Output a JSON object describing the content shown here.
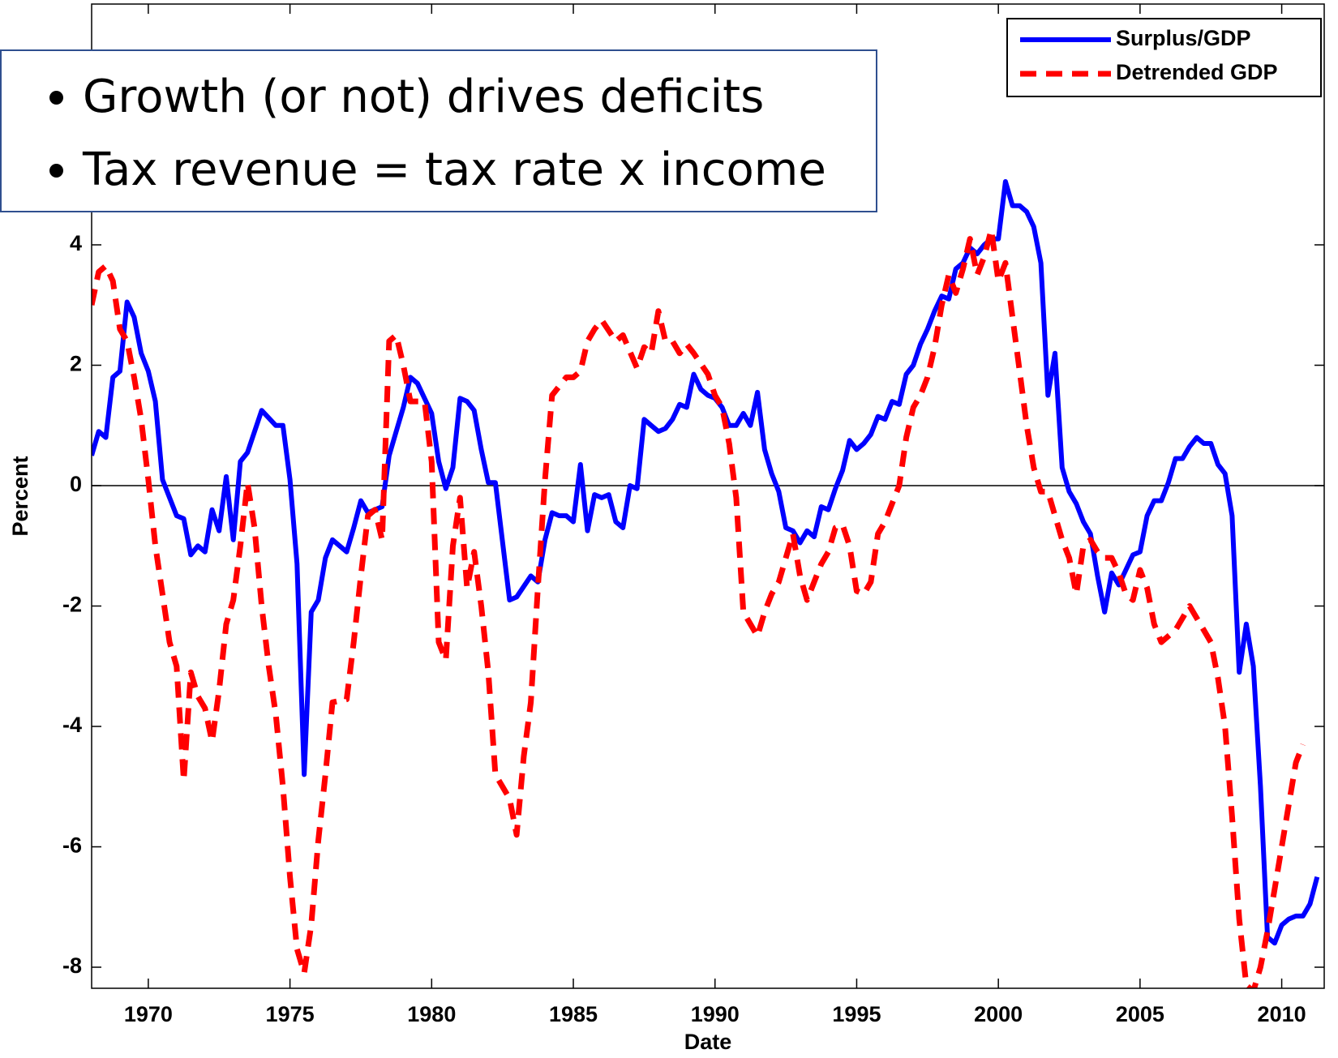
{
  "chart_data": {
    "type": "line",
    "xlabel": "Date",
    "ylabel": "Percent",
    "xlim": [
      1968,
      2011.5
    ],
    "ylim": [
      -8.35,
      8
    ],
    "xticks": [
      1970,
      1975,
      1980,
      1985,
      1990,
      1995,
      2000,
      2005,
      2010
    ],
    "yticks": [
      -8,
      -6,
      -4,
      -2,
      0,
      2,
      4
    ],
    "legend": "upper right",
    "annotations": [
      "Growth (or not) drives deficits",
      "Tax revenue = tax rate x income"
    ],
    "series": [
      {
        "name": "Surplus/GDP",
        "color": "#0000ff",
        "style": "solid",
        "x": [
          1968,
          1968.25,
          1968.5,
          1968.75,
          1969,
          1969.25,
          1969.5,
          1969.75,
          1970,
          1970.25,
          1970.5,
          1970.75,
          1971,
          1971.25,
          1971.5,
          1971.75,
          1972,
          1972.25,
          1972.5,
          1972.75,
          1973,
          1973.25,
          1973.5,
          1974,
          1974.5,
          1974.75,
          1975,
          1975.25,
          1975.5,
          1975.75,
          1976,
          1976.25,
          1976.5,
          1977,
          1977.25,
          1977.5,
          1977.75,
          1978.25,
          1978.5,
          1978.75,
          1979,
          1979.25,
          1979.5,
          1980,
          1980.25,
          1980.5,
          1980.75,
          1981,
          1981.25,
          1981.5,
          1981.75,
          1982,
          1982.25,
          1982.75,
          1983,
          1983.5,
          1983.75,
          1984,
          1984.25,
          1984.5,
          1984.75,
          1985,
          1985.25,
          1985.5,
          1985.75,
          1986,
          1986.25,
          1986.5,
          1986.75,
          1987,
          1987.25,
          1987.5,
          1987.75,
          1988,
          1988.25,
          1988.5,
          1988.75,
          1989,
          1989.25,
          1989.5,
          1989.75,
          1990,
          1990.25,
          1990.5,
          1990.75,
          1991,
          1991.25,
          1991.5,
          1991.75,
          1992,
          1992.25,
          1992.5,
          1992.75,
          1993,
          1993.25,
          1993.5,
          1993.75,
          1994,
          1994.25,
          1994.5,
          1994.75,
          1995,
          1995.25,
          1995.5,
          1995.75,
          1996,
          1996.25,
          1996.5,
          1996.75,
          1997,
          1997.25,
          1997.5,
          1997.75,
          1998,
          1998.25,
          1998.5,
          1998.75,
          1999,
          1999.25,
          1999.5,
          1999.75,
          2000,
          2000.25,
          2000.5,
          2000.75,
          2001,
          2001.25,
          2001.5,
          2001.75,
          2002,
          2002.25,
          2002.5,
          2002.75,
          2003,
          2003.25,
          2003.5,
          2003.75,
          2004,
          2004.25,
          2004.5,
          2004.75,
          2005,
          2005.25,
          2005.5,
          2005.75,
          2006,
          2006.25,
          2006.5,
          2006.75,
          2007,
          2007.25,
          2007.5,
          2007.75,
          2008,
          2008.25,
          2008.5,
          2008.75,
          2009,
          2009.25,
          2009.5,
          2009.75,
          2010,
          2010.25,
          2010.5,
          2010.75,
          2011,
          2011.25
        ],
        "values": [
          0.5,
          0.9,
          0.8,
          1.8,
          1.9,
          3.05,
          2.8,
          2.2,
          1.9,
          1.4,
          0.1,
          -0.2,
          -0.5,
          -0.55,
          -1.15,
          -1.0,
          -1.1,
          -0.4,
          -0.75,
          0.15,
          -0.9,
          0.4,
          0.55,
          1.25,
          1.0,
          1.0,
          0.1,
          -1.3,
          -4.8,
          -2.1,
          -1.9,
          -1.2,
          -0.9,
          -1.1,
          -0.7,
          -0.25,
          -0.45,
          -0.35,
          0.5,
          0.9,
          1.3,
          1.8,
          1.7,
          1.2,
          0.4,
          -0.05,
          0.3,
          1.45,
          1.4,
          1.25,
          0.6,
          0.05,
          0.05,
          -1.9,
          -1.85,
          -1.5,
          -1.6,
          -0.9,
          -0.45,
          -0.5,
          -0.5,
          -0.6,
          0.35,
          -0.75,
          -0.15,
          -0.2,
          -0.15,
          -0.6,
          -0.7,
          0.0,
          -0.05,
          1.1,
          1.0,
          0.9,
          0.95,
          1.1,
          1.35,
          1.3,
          1.85,
          1.6,
          1.5,
          1.45,
          1.3,
          1.0,
          1.0,
          1.2,
          1.0,
          1.55,
          0.6,
          0.2,
          -0.1,
          -0.7,
          -0.75,
          -0.95,
          -0.75,
          -0.85,
          -0.35,
          -0.4,
          -0.05,
          0.25,
          0.75,
          0.6,
          0.7,
          0.85,
          1.15,
          1.1,
          1.4,
          1.35,
          1.85,
          2.0,
          2.35,
          2.6,
          2.9,
          3.15,
          3.1,
          3.6,
          3.7,
          3.95,
          3.85,
          4.0,
          4.1,
          4.1,
          5.05,
          4.65,
          4.65,
          4.55,
          4.3,
          3.7,
          1.5,
          2.2,
          0.3,
          -0.1,
          -0.3,
          -0.6,
          -0.8,
          -1.5,
          -2.1,
          -1.45,
          -1.65,
          -1.4,
          -1.15,
          -1.1,
          -0.5,
          -0.25,
          -0.25,
          0.05,
          0.45,
          0.45,
          0.65,
          0.8,
          0.7,
          0.7,
          0.35,
          0.2,
          -0.5,
          -3.1,
          -2.3,
          -3.0,
          -5.0,
          -7.5,
          -7.6,
          -7.3,
          -7.2,
          -7.15,
          -7.15,
          -6.95,
          -6.5
        ]
      },
      {
        "name": "Detrended GDP",
        "color": "#ff0000",
        "style": "dashed",
        "x": [
          1968,
          1968.25,
          1968.5,
          1968.75,
          1969,
          1969.25,
          1969.5,
          1969.75,
          1970,
          1970.25,
          1970.5,
          1970.75,
          1971,
          1971.25,
          1971.5,
          1971.75,
          1972,
          1972.25,
          1972.5,
          1972.75,
          1973,
          1973.25,
          1973.5,
          1973.75,
          1974,
          1974.25,
          1974.5,
          1974.75,
          1975,
          1975.25,
          1975.5,
          1975.75,
          1976,
          1976.25,
          1976.5,
          1977,
          1977.25,
          1977.5,
          1977.75,
          1978,
          1978.25,
          1978.5,
          1978.75,
          1979,
          1979.25,
          1979.75,
          1980,
          1980.25,
          1980.5,
          1980.75,
          1981,
          1981.25,
          1981.5,
          1981.75,
          1982,
          1982.25,
          1982.5,
          1982.75,
          1983,
          1983.25,
          1983.5,
          1983.75,
          1984,
          1984.25,
          1984.5,
          1984.75,
          1985,
          1985.25,
          1985.5,
          1985.75,
          1986,
          1986.5,
          1986.75,
          1987.25,
          1987.5,
          1987.75,
          1988,
          1988.25,
          1988.5,
          1988.75,
          1989,
          1989.25,
          1989.75,
          1990,
          1990.25,
          1990.5,
          1990.75,
          1991,
          1991.25,
          1991.5,
          1991.75,
          1992,
          1992.25,
          1992.5,
          1992.75,
          1993,
          1993.25,
          1993.5,
          1993.75,
          1994,
          1994.25,
          1994.5,
          1994.75,
          1995,
          1995.25,
          1995.5,
          1995.75,
          1996,
          1996.25,
          1996.5,
          1996.75,
          1997,
          1997.25,
          1997.5,
          1997.75,
          1998,
          1998.25,
          1998.5,
          1998.75,
          1999,
          1999.25,
          1999.5,
          1999.75,
          2000,
          2000.25,
          2000.5,
          2000.75,
          2001,
          2001.25,
          2001.5,
          2001.75,
          2002,
          2002.25,
          2002.5,
          2002.75,
          2003,
          2003.25,
          2003.5,
          2003.75,
          2004,
          2004.25,
          2004.5,
          2004.75,
          2005,
          2005.25,
          2005.5,
          2005.75,
          2006,
          2006.25,
          2006.5,
          2006.75,
          2007,
          2007.25,
          2007.5,
          2007.75,
          2008,
          2008.25,
          2008.5,
          2008.75,
          2009,
          2009.25,
          2009.5,
          2009.75,
          2010,
          2010.25,
          2010.5,
          2010.75
        ],
        "values": [
          3.0,
          3.55,
          3.65,
          3.4,
          2.6,
          2.4,
          1.8,
          1.1,
          0.1,
          -1.0,
          -1.8,
          -2.6,
          -3.0,
          -4.9,
          -3.1,
          -3.5,
          -3.7,
          -4.25,
          -3.4,
          -2.3,
          -1.9,
          -1.0,
          0.05,
          -0.7,
          -2.0,
          -3.0,
          -3.8,
          -5.0,
          -6.5,
          -7.7,
          -8.1,
          -7.3,
          -5.9,
          -4.8,
          -3.6,
          -3.55,
          -2.6,
          -1.5,
          -0.5,
          -0.4,
          -0.9,
          2.4,
          2.5,
          2.0,
          1.4,
          1.4,
          0.4,
          -2.6,
          -2.9,
          -1.0,
          -0.2,
          -1.7,
          -1.1,
          -2.0,
          -3.1,
          -4.8,
          -5.0,
          -5.2,
          -5.8,
          -4.5,
          -3.6,
          -1.7,
          0.1,
          1.5,
          1.65,
          1.8,
          1.8,
          1.9,
          2.4,
          2.6,
          2.75,
          2.4,
          2.5,
          1.95,
          2.3,
          2.2,
          2.9,
          2.4,
          2.4,
          2.2,
          2.35,
          2.2,
          1.85,
          1.5,
          1.3,
          0.7,
          -0.2,
          -2.1,
          -2.3,
          -2.5,
          -2.1,
          -1.8,
          -1.6,
          -1.2,
          -0.8,
          -1.5,
          -1.9,
          -1.6,
          -1.3,
          -1.1,
          -0.7,
          -0.65,
          -1.0,
          -1.75,
          -1.8,
          -1.6,
          -0.8,
          -0.6,
          -0.3,
          0.0,
          0.8,
          1.3,
          1.5,
          1.8,
          2.3,
          3.0,
          3.5,
          3.2,
          3.6,
          4.1,
          3.5,
          3.8,
          4.25,
          3.4,
          3.7,
          2.8,
          1.9,
          1.0,
          0.3,
          -0.1,
          -0.1,
          -0.5,
          -0.9,
          -1.2,
          -1.8,
          -1.0,
          -0.9,
          -1.1,
          -1.2,
          -1.2,
          -1.45,
          -1.8,
          -1.9,
          -1.4,
          -1.7,
          -2.3,
          -2.6,
          -2.5,
          -2.4,
          -2.2,
          -2.0,
          -2.2,
          -2.4,
          -2.6,
          -3.2,
          -4.0,
          -5.5,
          -7.2,
          -8.3,
          -8.4,
          -8.0,
          -7.4,
          -6.7,
          -6.0,
          -5.3,
          -4.6,
          -4.3
        ]
      }
    ]
  }
}
